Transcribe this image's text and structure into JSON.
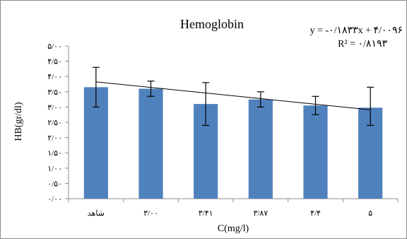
{
  "chart_data": {
    "type": "bar",
    "title": "Hemoglobin",
    "xlabel": "C(mg/l)",
    "ylabel": "HB(gr/dl)",
    "categories": [
      "شاهد",
      "۳/۰۰",
      "۳/۴۱",
      "۳/۸۷",
      "۴/۴",
      "۵"
    ],
    "values": [
      3.65,
      3.6,
      3.1,
      3.25,
      3.05,
      2.98
    ],
    "error_low": [
      3.0,
      3.35,
      2.4,
      3.0,
      2.75,
      2.4
    ],
    "error_high": [
      4.3,
      3.85,
      3.8,
      3.5,
      3.35,
      3.65
    ],
    "ylim": [
      0,
      5
    ],
    "yticks": [
      0,
      0.5,
      1,
      1.5,
      2,
      2.5,
      3,
      3.5,
      4,
      4.5,
      5
    ],
    "ytick_labels": [
      "۰/۰۰",
      "۰/۵۰",
      "۱/۰۰",
      "۱/۵۰",
      "۲/۰۰",
      "۲/۵۰",
      "۳/۰۰",
      "۳/۵۰",
      "۴/۰۰",
      "۴/۵۰",
      "۵/۰۰"
    ],
    "trendline": {
      "slope": -0.1833,
      "intercept": 4.0096
    },
    "equation_text": "y = -۰/۱۸۳۳x + ۴/۰۰۹۶",
    "r2_text": "R² = ۰/۸۱۹۳",
    "bar_color": "#4f81bd",
    "grid": false,
    "legend": "none"
  }
}
